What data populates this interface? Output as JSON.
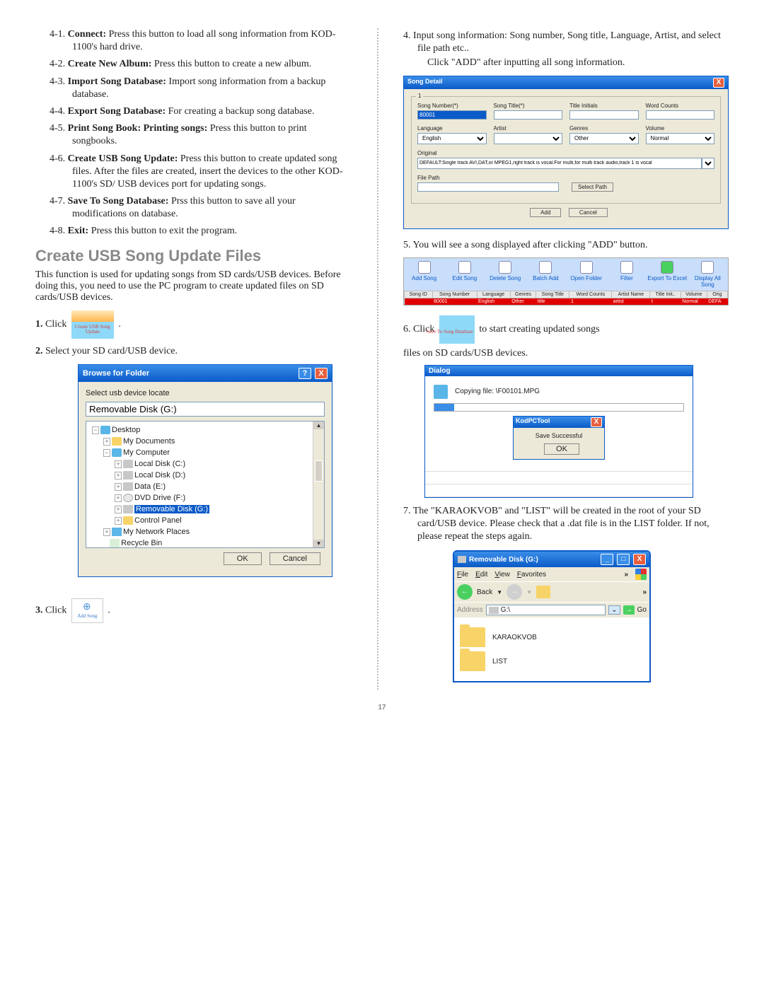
{
  "left": {
    "items": [
      {
        "n": "4-1.",
        "b": "Connect:",
        "t": " Press this button to load all song information from KOD-1100's hard drive."
      },
      {
        "n": "4-2.",
        "b": "Create New Album:",
        "t": " Press this button to create a new album."
      },
      {
        "n": "4-3.",
        "b": "Import Song Database:",
        "t": " Import song information from a backup database."
      },
      {
        "n": "4-4.",
        "b": "Export Song Database:",
        "t": " For creating a backup song database."
      },
      {
        "n": "4-5.",
        "b": "Print Song Book: Printing songs:",
        "t": " Press this button to print songbooks."
      },
      {
        "n": "4-6.",
        "b": "Create USB Song Update:",
        "t": " Press this button to create updated song files. After the files are created, insert the devices to the other KOD-1100's SD/ USB devices port for updating songs."
      },
      {
        "n": "4-7.",
        "b": "Save To Song Database:",
        "t": " Prss this button to save all your modifications on database."
      },
      {
        "n": "4-8.",
        "b": "Exit:",
        "t": " Press this button to exit the program."
      }
    ],
    "h2": "Create USB Song Update Files",
    "intro": "This function is used for updating songs from SD cards/USB devices. Before doing this, you need to use the PC program to create updated files on SD cards/USB devices.",
    "step1_a": "1.",
    "step1_b": " Click ",
    "icon_create_usb": "Create USB Song Update",
    "step2": "2. Select your SD card/USB device.",
    "step3_a": "3.",
    "step3_b": " Click ",
    "icon_add_song": "Add Song"
  },
  "browse": {
    "title": "Browse for Folder",
    "prompt": "Select usb device locate",
    "input": "Removable Disk (G:)",
    "tree": {
      "desktop": "Desktop",
      "mydocs": "My Documents",
      "mycomp": "My Computer",
      "c": "Local Disk (C:)",
      "d": "Local Disk (D:)",
      "e": "Data (E:)",
      "f": "DVD Drive (F:)",
      "g": "Removable Disk (G:)",
      "cp": "Control Panel",
      "net": "My Network Places",
      "rb": "Recycle Bin"
    },
    "ok": "OK",
    "cancel": "Cancel"
  },
  "right": {
    "p4a": "4. Input song information: Song number, Song title, Language, Artist, and select file path etc..",
    "p4b": "Click \"ADD\" after inputting all song information.",
    "p5": "5. You will see a song displayed after clicking \"ADD\" button.",
    "p6a": "6. Click ",
    "icon_save": "Save To Song Database",
    "p6b": " to start creating updated songs",
    "p6c": "files on SD cards/USB devices.",
    "p7": "7. The \"KARAOKVOB\" and \"LIST\" will be created in the root of your SD card/USB device. Please check that a .dat file is in the LIST folder. If not, please repeat the steps again."
  },
  "song_detail": {
    "title": "Song Detail",
    "group": "1",
    "song_number_lbl": "Song Number(*)",
    "song_number_val": "80001",
    "song_title_lbl": "Song Title(*)",
    "title_initials_lbl": "Title Initials",
    "word_counts_lbl": "Word Counts",
    "language_lbl": "Language",
    "language_val": "English",
    "artist_lbl": "Artist",
    "genres_lbl": "Genres",
    "genres_val": "Other",
    "volume_lbl": "Volume",
    "volume_val": "Normal",
    "original_lbl": "Original",
    "original_val": "DEFAULT:Single track AVI,DAT,or MPEG1,right track is vocal.For multi,for multi track audio,track 1 is vocal",
    "filepath_lbl": "File Path",
    "select_path": "Select Path",
    "add": "Add",
    "cancel": "Cancel"
  },
  "toolbar": {
    "btns": [
      "Add Song",
      "Edit Song",
      "Delete Song",
      "Batch Add",
      "Open Folder",
      "Filter",
      "Export To Excel",
      "Display All Song"
    ],
    "cols": [
      "Song ID",
      "Song Number",
      "Language",
      "Genres",
      "Song Title",
      "Word Counts",
      "Artist Name",
      "Title Init..",
      "Volume",
      "Orig"
    ],
    "row": [
      "",
      "80001",
      "English",
      "Other",
      "title",
      "1",
      "artist",
      "t",
      "Normal",
      "DEFA"
    ]
  },
  "copy": {
    "title": "Dialog",
    "line": "Copying file: \\F00101.MPG",
    "inner_title": "KodPCTool",
    "msg": "Save Successful",
    "ok": "OK"
  },
  "explorer": {
    "title": "Removable Disk (G:)",
    "menu": [
      "File",
      "Edit",
      "View",
      "Favorites"
    ],
    "back": "Back",
    "addr_lbl": "Address",
    "addr_val": "G:\\",
    "go": "Go",
    "folders": [
      "KARAOKVOB",
      "LIST"
    ]
  },
  "page_num": "17"
}
